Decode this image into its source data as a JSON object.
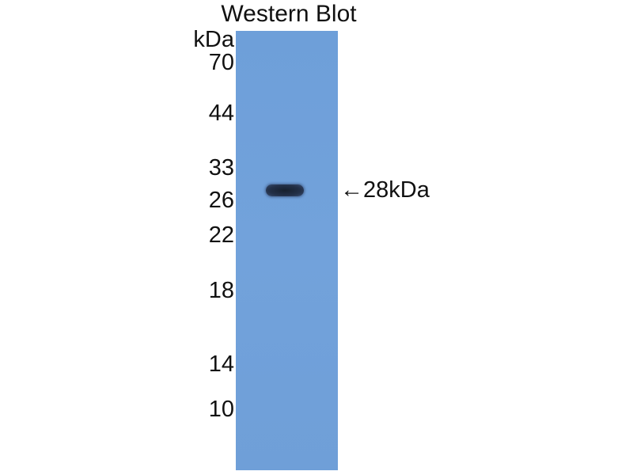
{
  "title": "Western Blot",
  "unit_label": "kDa",
  "markers": [
    "70",
    "44",
    "33",
    "26",
    "22",
    "18",
    "14",
    "10"
  ],
  "band_annotation": {
    "arrow": "←",
    "label": "28kDa"
  },
  "colors": {
    "membrane": "#6f9fd8",
    "band": "#1c2536",
    "text": "#111111"
  }
}
